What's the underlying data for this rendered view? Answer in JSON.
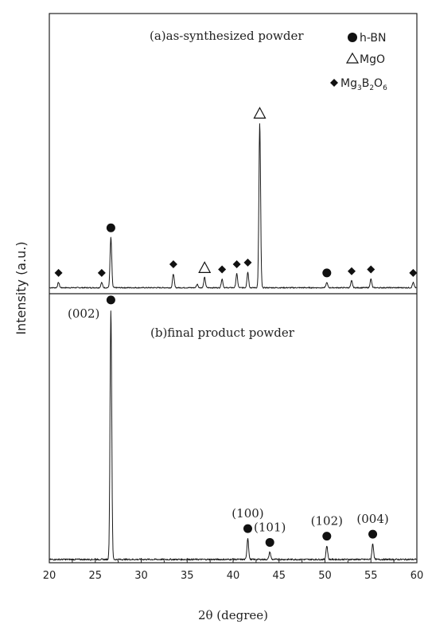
{
  "chart_data": {
    "type": "line",
    "xlabel": "2θ (degree)",
    "ylabel": "Intensity (a.u.)",
    "xlim": [
      20,
      60
    ],
    "x_ticks": [
      20,
      25,
      30,
      35,
      40,
      45,
      50,
      55,
      60
    ],
    "legend": {
      "placement": "top-right",
      "entries": [
        {
          "marker": "circle",
          "label": "h-BN"
        },
        {
          "marker": "triangle",
          "label": "MgO"
        },
        {
          "marker": "diamond",
          "label_base": "Mg",
          "sub1": "3",
          "mid": "B",
          "sub2": "2",
          "mid2": "O",
          "sub3": "6"
        }
      ]
    },
    "panels": [
      {
        "id": "a",
        "title": "(a)as-synthesized powder",
        "baseline": 0.03,
        "peaks": [
          {
            "x": 21.0,
            "h": 0.03,
            "marker": "diamond"
          },
          {
            "x": 25.7,
            "h": 0.03,
            "marker": "diamond"
          },
          {
            "x": 26.7,
            "h": 0.29,
            "marker": "circle"
          },
          {
            "x": 33.5,
            "h": 0.08,
            "marker": "diamond"
          },
          {
            "x": 36.1,
            "h": 0.02
          },
          {
            "x": 36.9,
            "h": 0.06,
            "marker": "triangle"
          },
          {
            "x": 38.8,
            "h": 0.05,
            "marker": "diamond"
          },
          {
            "x": 40.4,
            "h": 0.08,
            "marker": "diamond"
          },
          {
            "x": 41.6,
            "h": 0.09,
            "marker": "diamond"
          },
          {
            "x": 42.9,
            "h": 0.95,
            "marker": "triangle"
          },
          {
            "x": 50.2,
            "h": 0.03,
            "marker": "circle"
          },
          {
            "x": 52.9,
            "h": 0.04,
            "marker": "diamond"
          },
          {
            "x": 55.0,
            "h": 0.05,
            "marker": "diamond"
          },
          {
            "x": 59.6,
            "h": 0.03,
            "marker": "diamond"
          }
        ]
      },
      {
        "id": "b",
        "title": "(b)final product powder",
        "baseline": 0.01,
        "peaks": [
          {
            "x": 26.7,
            "h": 1.0,
            "marker": "circle",
            "label": "(002)"
          },
          {
            "x": 41.6,
            "h": 0.085,
            "marker": "circle",
            "label": "(100)"
          },
          {
            "x": 44.0,
            "h": 0.03,
            "marker": "circle",
            "label": "(101)"
          },
          {
            "x": 50.2,
            "h": 0.055,
            "marker": "circle",
            "label": "(102)"
          },
          {
            "x": 55.2,
            "h": 0.063,
            "marker": "circle",
            "label": "(004)"
          }
        ]
      }
    ]
  }
}
